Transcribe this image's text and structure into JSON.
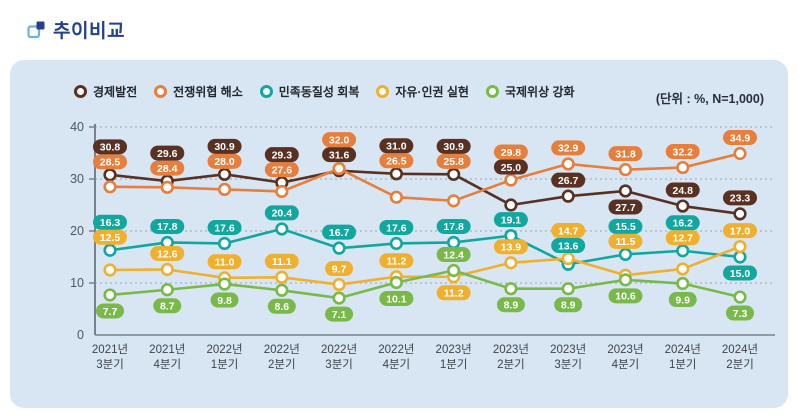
{
  "header": {
    "title": "추이비교",
    "icon": "overlap-squares-icon"
  },
  "chart_data": {
    "type": "line",
    "title": "추이비교",
    "unit_label": "(단위 : %, N=1,000)",
    "legend_position": "top",
    "grid": "dashed-horizontal",
    "ylim": [
      0,
      40
    ],
    "y_ticks": [
      0,
      10,
      20,
      30,
      40
    ],
    "categories": [
      "2021년 3분기",
      "2021년 4분기",
      "2022년 1분기",
      "2022년 2분기",
      "2022년 3분기",
      "2022년 4분기",
      "2023년 1분기",
      "2023년 2분기",
      "2023년 3분기",
      "2023년 4분기",
      "2024년 1분기",
      "2024년 2분기"
    ],
    "series": [
      {
        "name": "경제발전",
        "color": "#583122",
        "values": [
          30.8,
          29.6,
          30.9,
          29.3,
          31.6,
          31.0,
          30.9,
          25.0,
          26.7,
          27.7,
          24.8,
          23.3
        ]
      },
      {
        "name": "전쟁위협 해소",
        "color": "#e67e3c",
        "values": [
          28.5,
          28.4,
          28.0,
          27.6,
          32.0,
          26.5,
          25.8,
          29.8,
          32.9,
          31.8,
          32.2,
          34.9
        ]
      },
      {
        "name": "민족동질성 회복",
        "color": "#12a79e",
        "values": [
          16.3,
          17.8,
          17.6,
          20.4,
          16.7,
          17.6,
          17.8,
          19.1,
          13.6,
          15.5,
          16.2,
          15.0
        ]
      },
      {
        "name": "자유·인권 실현",
        "color": "#f0b02f",
        "values": [
          12.5,
          12.6,
          11.0,
          11.1,
          9.7,
          11.2,
          11.2,
          13.9,
          14.7,
          11.5,
          12.7,
          17.0
        ]
      },
      {
        "name": "국제위상 강화",
        "color": "#79b94a",
        "values": [
          7.7,
          8.7,
          9.8,
          8.6,
          7.1,
          10.1,
          12.4,
          8.9,
          8.9,
          10.6,
          9.9,
          7.3
        ]
      }
    ],
    "colors": {
      "card_background": "#d8e6f4",
      "title_blue": "#24408e",
      "axis_gray": "#78828c"
    }
  }
}
